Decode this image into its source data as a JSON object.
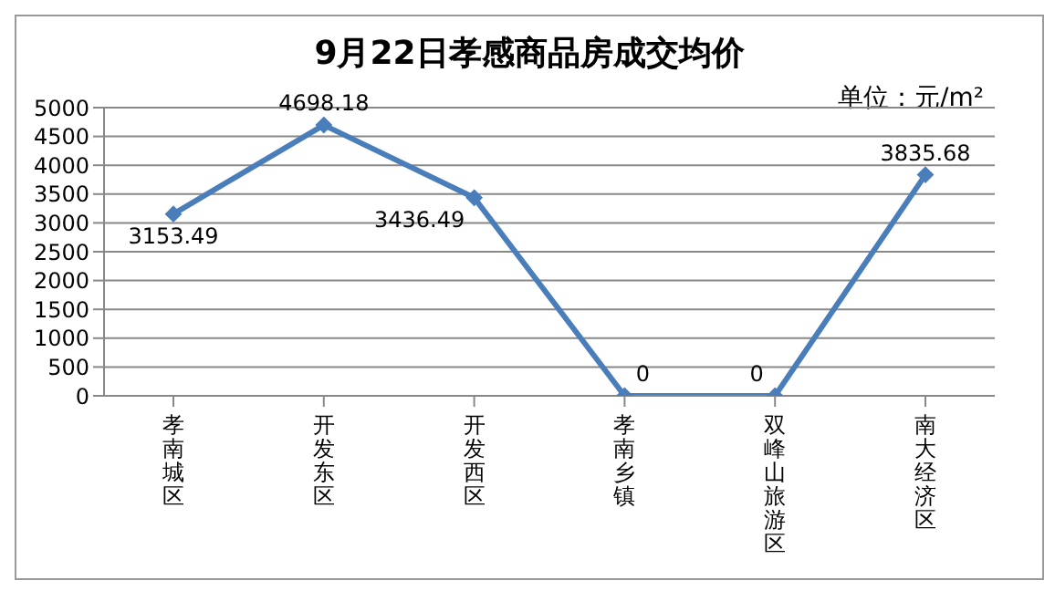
{
  "chart_data": {
    "type": "line",
    "title": "9月22日孝感商品房成交均价",
    "annotations": [
      "单位：元/m²"
    ],
    "categories": [
      "孝南城区",
      "开发东区",
      "开发西区",
      "孝南乡镇",
      "双峰山旅游区",
      "南大经济区"
    ],
    "series": [
      {
        "color": "#4a7ebb",
        "values": [
          3153.49,
          4698.18,
          3436.49,
          0,
          0,
          3835.68
        ]
      }
    ],
    "ylim": [
      0,
      5000
    ],
    "yticks": [
      0,
      500,
      1000,
      1500,
      2000,
      2500,
      3000,
      3500,
      4000,
      4500,
      5000
    ],
    "grid": "y",
    "marker": "diamond",
    "data_labels": true,
    "legend": false
  }
}
